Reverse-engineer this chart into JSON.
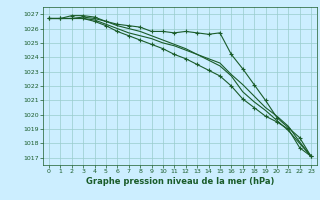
{
  "title": "Graphe pression niveau de la mer (hPa)",
  "bg_color": "#cceeff",
  "grid_color": "#99cccc",
  "line_color": "#1a5c2a",
  "ylim": [
    1016.5,
    1027.5
  ],
  "xlim": [
    -0.5,
    23.5
  ],
  "yticks": [
    1017,
    1018,
    1019,
    1020,
    1021,
    1022,
    1023,
    1024,
    1025,
    1026,
    1027
  ],
  "xticks": [
    0,
    1,
    2,
    3,
    4,
    5,
    6,
    7,
    8,
    9,
    10,
    11,
    12,
    13,
    14,
    15,
    16,
    17,
    18,
    19,
    20,
    21,
    22,
    23
  ],
  "line1_x": [
    0,
    1,
    2,
    3,
    4,
    5,
    6,
    7,
    8,
    9,
    10,
    11,
    12,
    13,
    14,
    15,
    16,
    17,
    18,
    19,
    20,
    21,
    22,
    23
  ],
  "line1_y": [
    1026.7,
    1026.7,
    1026.9,
    1026.9,
    1026.8,
    1026.5,
    1026.3,
    1026.2,
    1026.1,
    1025.8,
    1025.8,
    1025.7,
    1025.8,
    1025.7,
    1025.6,
    1025.7,
    1024.2,
    1023.2,
    1022.1,
    1021.0,
    1019.8,
    1019.1,
    1018.4,
    1017.1
  ],
  "line2_x": [
    0,
    1,
    2,
    3,
    4,
    5,
    6,
    7,
    8,
    9,
    10,
    11,
    12,
    13,
    14,
    15,
    16,
    17,
    18,
    19,
    20,
    21,
    22,
    23
  ],
  "line2_y": [
    1026.7,
    1026.7,
    1026.7,
    1026.7,
    1026.6,
    1026.3,
    1026.0,
    1025.7,
    1025.5,
    1025.3,
    1025.0,
    1024.8,
    1024.5,
    1024.2,
    1023.9,
    1023.6,
    1022.8,
    1022.1,
    1021.3,
    1020.5,
    1019.9,
    1019.2,
    1018.1,
    1017.1
  ],
  "line3_x": [
    0,
    1,
    2,
    3,
    4,
    5,
    6,
    7,
    8,
    9,
    10,
    11,
    12,
    13,
    14,
    15,
    16,
    17,
    18,
    19,
    20,
    21,
    22,
    23
  ],
  "line3_y": [
    1026.7,
    1026.7,
    1026.7,
    1026.8,
    1026.7,
    1026.5,
    1026.2,
    1026.0,
    1025.8,
    1025.5,
    1025.2,
    1024.9,
    1024.6,
    1024.2,
    1023.8,
    1023.4,
    1022.7,
    1021.6,
    1020.9,
    1020.3,
    1019.6,
    1018.9,
    1018.0,
    1017.1
  ],
  "line4_x": [
    0,
    1,
    2,
    3,
    4,
    5,
    6,
    7,
    8,
    9,
    10,
    11,
    12,
    13,
    14,
    15,
    16,
    17,
    18,
    19,
    20,
    21,
    22,
    23
  ],
  "line4_y": [
    1026.7,
    1026.7,
    1026.7,
    1026.7,
    1026.5,
    1026.2,
    1025.8,
    1025.5,
    1025.2,
    1024.9,
    1024.6,
    1024.2,
    1023.9,
    1023.5,
    1023.1,
    1022.7,
    1022.0,
    1021.1,
    1020.5,
    1019.9,
    1019.5,
    1019.0,
    1017.7,
    1017.1
  ]
}
